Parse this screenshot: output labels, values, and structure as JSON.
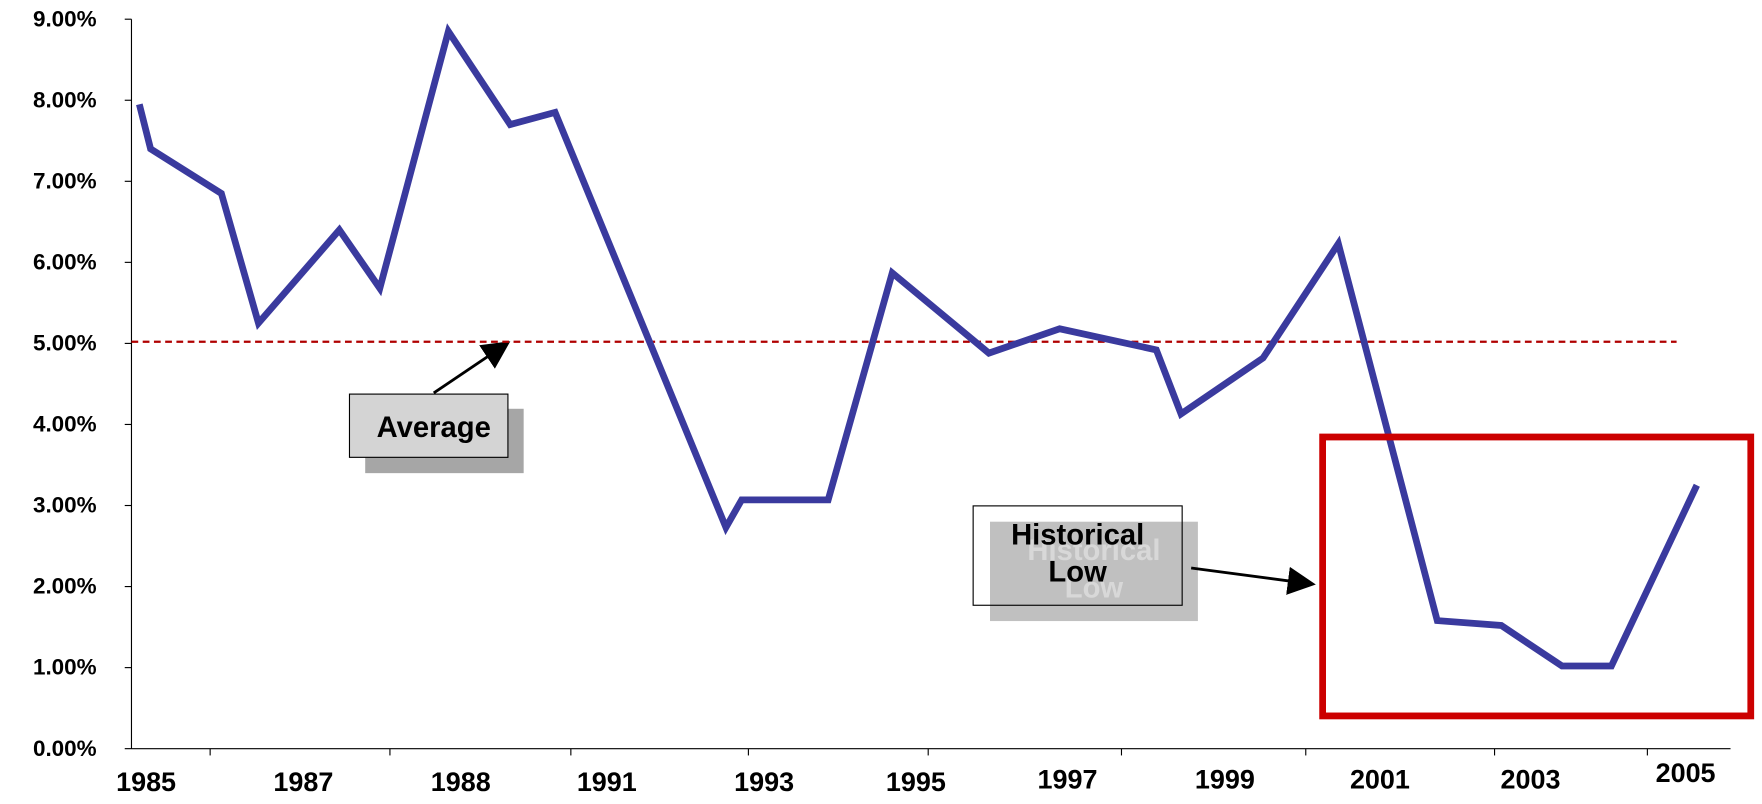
{
  "chart_data": {
    "type": "line",
    "x_labels": [
      "1985",
      "1987",
      "1988",
      "1991",
      "1993",
      "1995",
      "1997",
      "1999",
      "2001",
      "2003",
      "2005"
    ],
    "series": [
      {
        "color": "#3a3a9e",
        "values": [
          7.95,
          7.4,
          6.85,
          5.25,
          6.4,
          5.68,
          8.85,
          7.7,
          7.85,
          2.73,
          3.07,
          3.07,
          5.87,
          4.88,
          5.18,
          4.92,
          4.13,
          4.82,
          6.23,
          1.58,
          1.52,
          1.02,
          1.02,
          3.25
        ]
      }
    ],
    "ylim": [
      0,
      9
    ],
    "yticks": [
      {
        "value": 0,
        "label": "0.00%"
      },
      {
        "value": 1,
        "label": "1.00%"
      },
      {
        "value": 2,
        "label": "2.00%"
      },
      {
        "value": 3,
        "label": "3.00%"
      },
      {
        "value": 4,
        "label": "4.00%"
      },
      {
        "value": 5,
        "label": "5.00%"
      },
      {
        "value": 6,
        "label": "6.00%"
      },
      {
        "value": 7,
        "label": "7.00%"
      },
      {
        "value": 8,
        "label": "8.00%"
      },
      {
        "value": 9,
        "label": "9.00%"
      }
    ],
    "average_line": {
      "value": 5.02,
      "color": "#b00000"
    },
    "annotations": [
      "Average",
      "Historical Low"
    ],
    "highlight_color": "#cc0000"
  }
}
